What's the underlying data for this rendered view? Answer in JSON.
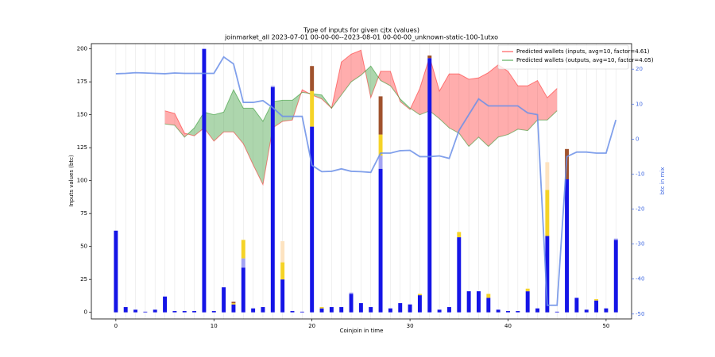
{
  "chart_data": {
    "type": "combo",
    "title": "Type of inputs for given cjtx (values)",
    "subtitle": "joinmarket_all 2023-07-01 00-00-00--2023-08-01 00-00-00_unknown-static-100-1utxo",
    "x_label": "Coinjoin in time",
    "y_label": "Inputs values (btc)",
    "y2_label": "btc in mix",
    "x": [
      0,
      1,
      2,
      3,
      4,
      5,
      6,
      7,
      8,
      9,
      10,
      11,
      12,
      13,
      14,
      15,
      16,
      17,
      18,
      19,
      20,
      21,
      22,
      23,
      24,
      25,
      26,
      27,
      28,
      29,
      30,
      31,
      32,
      33,
      34,
      35,
      36,
      37,
      38,
      39,
      40,
      41,
      42,
      43,
      44,
      45,
      46,
      47,
      48,
      49,
      50,
      51
    ],
    "xlim": [
      -2.5,
      52.6
    ],
    "xticks": [
      0,
      10,
      20,
      30,
      40,
      50
    ],
    "ylim": [
      -5,
      204
    ],
    "yticks": [
      0,
      25,
      50,
      75,
      100,
      125,
      150,
      175,
      200
    ],
    "y2lim": [
      -51.4,
      27.3
    ],
    "y2ticks": [
      -50,
      -40,
      -30,
      -20,
      -10,
      0,
      10,
      20
    ],
    "y2_color": "#4169e1",
    "vgrid": true,
    "legend": "upper right",
    "series": [
      {
        "type": "fill-line",
        "name": "Predicted wallets (inputs, avg=10, factor=4.61)",
        "color": "#ff0000",
        "x": [
          5,
          6,
          7,
          8,
          9,
          10,
          11,
          12,
          13,
          14,
          15,
          16,
          17,
          18,
          19,
          20,
          21,
          22,
          23,
          24,
          25,
          26,
          27,
          28,
          29,
          30,
          31,
          32,
          33,
          34,
          35,
          36,
          37,
          38,
          39,
          40,
          41,
          42,
          43,
          44,
          45
        ],
        "values": [
          153,
          151,
          136,
          134,
          140,
          130,
          137,
          137,
          128,
          112,
          97,
          140,
          145,
          146,
          169,
          165,
          162,
          155,
          190,
          196,
          199,
          163,
          183,
          183,
          160,
          154,
          170,
          194,
          168,
          181,
          181,
          177,
          178,
          182,
          188,
          183,
          172,
          172,
          176,
          163,
          170
        ]
      },
      {
        "type": "fill-line",
        "name": "Predicted wallets (outputs, avg=10, factor=4.05)",
        "color": "#008000",
        "x": [
          5,
          6,
          7,
          8,
          9,
          10,
          11,
          12,
          13,
          14,
          15,
          16,
          17,
          18,
          19,
          20,
          21,
          22,
          23,
          24,
          25,
          26,
          27,
          28,
          29,
          30,
          31,
          32,
          33,
          34,
          35,
          36,
          37,
          38,
          39,
          40,
          41,
          42,
          43,
          44,
          45
        ],
        "values": [
          143,
          142,
          133,
          140,
          152,
          150,
          152,
          169,
          155,
          155,
          145,
          160,
          161,
          161,
          167,
          166,
          165,
          155,
          165,
          175,
          180,
          187,
          176,
          172,
          162,
          155,
          150,
          153,
          147,
          140,
          136,
          126,
          133,
          126,
          133,
          135,
          139,
          138,
          146,
          146,
          153
        ]
      },
      {
        "type": "bar",
        "color": "#1515e6",
        "values": [
          62,
          4,
          2,
          0.5,
          2,
          12,
          1,
          1,
          1,
          200,
          1,
          19,
          6,
          34,
          3,
          4,
          171,
          25,
          1,
          0.5,
          141,
          3,
          4,
          4,
          14,
          7,
          4,
          109,
          3,
          7,
          6,
          13,
          193,
          2,
          4,
          57,
          16,
          16,
          11,
          2,
          1,
          1,
          16,
          3,
          58,
          0.5,
          101,
          11,
          2,
          9,
          3,
          55
        ]
      },
      {
        "type": "bar",
        "color": "#a3a3f2",
        "values": [
          0,
          0,
          0,
          0,
          0,
          0,
          0,
          0,
          0,
          0,
          0,
          0,
          0,
          7,
          0,
          0,
          1,
          0,
          0,
          0,
          0,
          0,
          0,
          0,
          1,
          0,
          0,
          10,
          0,
          0,
          0,
          0,
          0,
          0,
          0,
          0,
          0,
          0,
          0,
          0,
          0,
          0,
          0,
          0,
          0,
          0,
          0,
          0,
          0,
          0,
          0,
          1
        ]
      },
      {
        "type": "bar",
        "color": "#f5d327",
        "values": [
          0,
          0,
          0,
          0,
          0,
          0,
          0,
          0,
          0,
          0,
          0,
          0,
          1,
          14,
          0,
          0,
          0,
          13,
          0,
          0,
          27,
          1,
          0,
          0,
          0,
          0,
          0,
          16,
          0,
          0,
          0,
          1,
          0,
          0,
          0,
          4,
          0,
          0,
          3,
          0,
          0,
          0,
          2,
          0,
          35,
          0,
          0,
          0,
          0,
          1,
          0,
          0
        ]
      },
      {
        "type": "bar",
        "color": "#fde3c0",
        "values": [
          0,
          0,
          0,
          0,
          0,
          0,
          0,
          0,
          0,
          0,
          0,
          0,
          0,
          0,
          0,
          0,
          0,
          16,
          0,
          0,
          0,
          0,
          0,
          0,
          0,
          0,
          0,
          0,
          0,
          0,
          0,
          0,
          0,
          0,
          0,
          0,
          0,
          0,
          0,
          0,
          0,
          0,
          0,
          0,
          21,
          0,
          0,
          0,
          0,
          0,
          0,
          0
        ]
      },
      {
        "type": "bar",
        "color": "#a0522d",
        "values": [
          0,
          0,
          0,
          0,
          0,
          0,
          0,
          0,
          0,
          0,
          0,
          0,
          1,
          0,
          0,
          0,
          0,
          0,
          0,
          0,
          19,
          0,
          0,
          0,
          0,
          0,
          0,
          29,
          0,
          0,
          0,
          0,
          2,
          0,
          0,
          0,
          0,
          0,
          0,
          0,
          0,
          0,
          0,
          0,
          0,
          0,
          23,
          0,
          0,
          0,
          0,
          0
        ]
      },
      {
        "type": "line",
        "axis": "y2",
        "color": "#6b8fe8",
        "values": [
          18.7,
          18.8,
          19,
          18.9,
          18.8,
          18.7,
          18.9,
          18.8,
          18.8,
          18.8,
          18.8,
          23.5,
          21.5,
          10.5,
          10.5,
          11,
          9,
          6.5,
          6.5,
          6.5,
          -7.5,
          -9.3,
          -9.2,
          -8.5,
          -9.2,
          -9.3,
          -9.5,
          -4,
          -4,
          -3.3,
          -3.2,
          -5,
          -5,
          -4.8,
          -5.5,
          2.5,
          7,
          11.5,
          9.5,
          9.5,
          9.5,
          9.5,
          7.5,
          7,
          -47.5,
          -47.5,
          -5,
          -3.7,
          -3.7,
          -4,
          -4,
          5.5
        ]
      }
    ]
  }
}
